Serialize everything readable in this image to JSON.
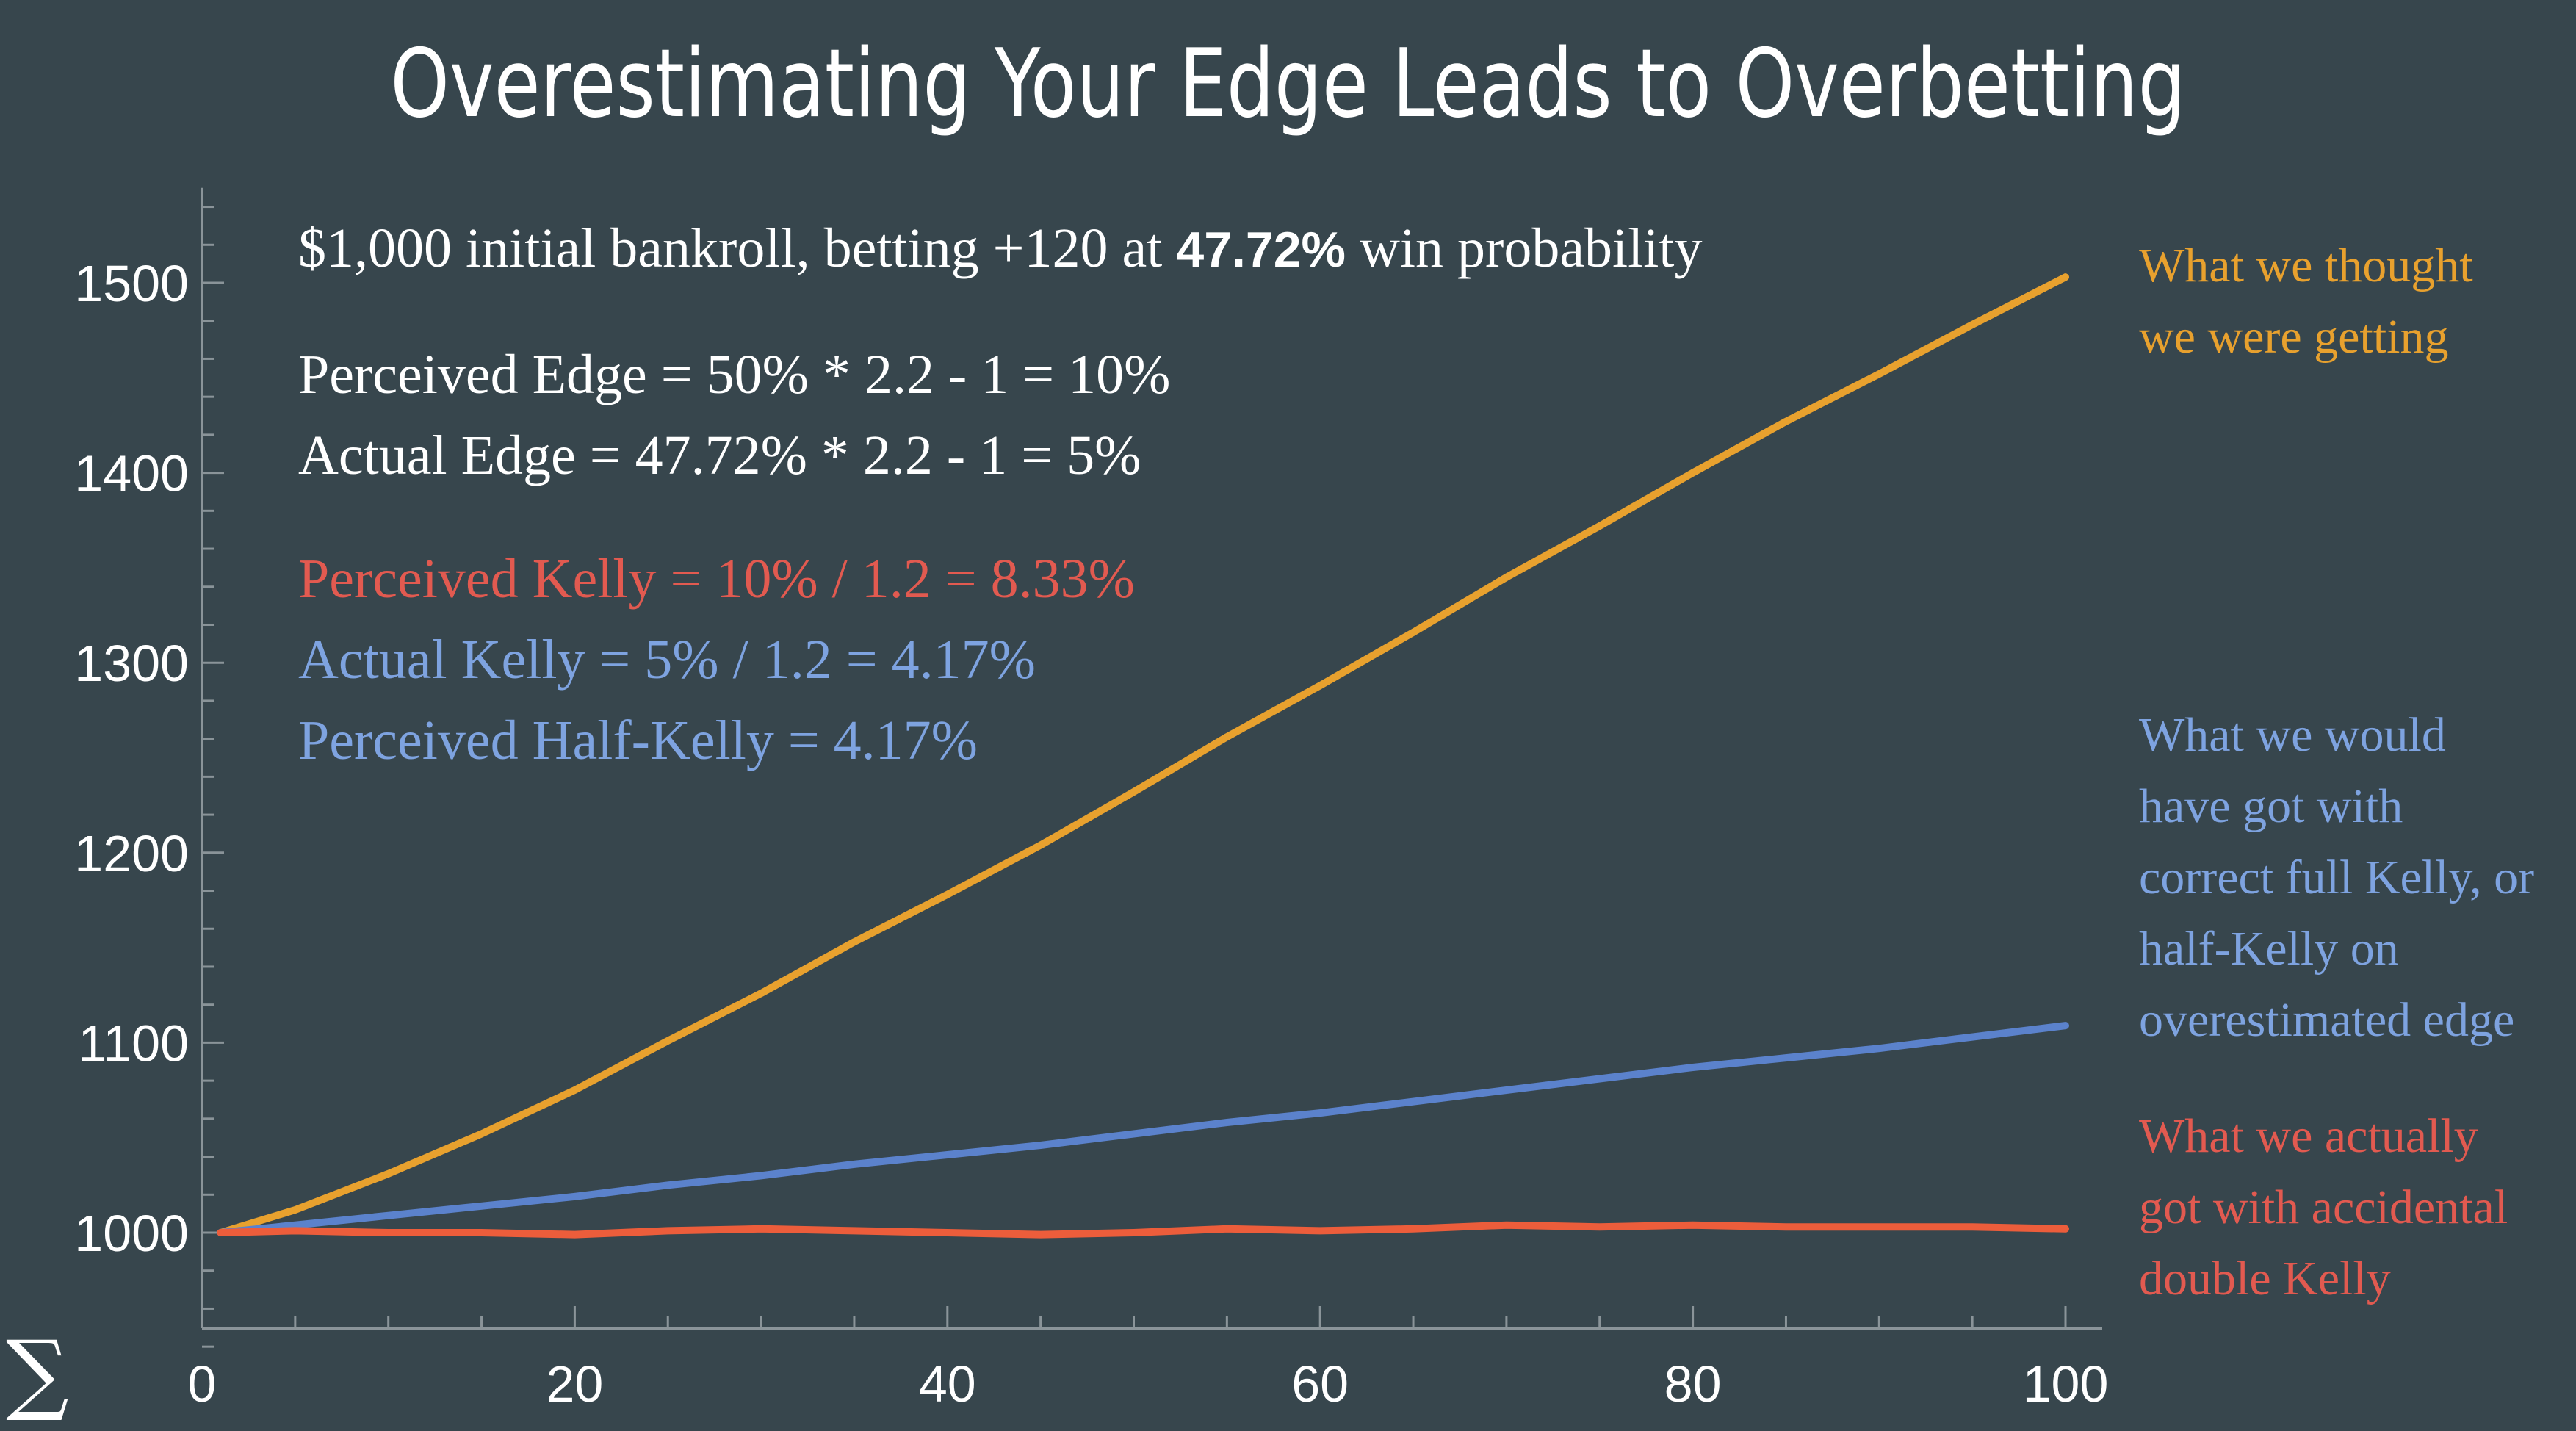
{
  "title": "Overestimating Your Edge Leads to Overbetting",
  "chart_data": {
    "type": "line",
    "xlim": [
      0,
      100
    ],
    "ylim": [
      940,
      1550
    ],
    "x_ticks": [
      0,
      20,
      40,
      60,
      80,
      100
    ],
    "y_ticks": [
      1000,
      1100,
      1200,
      1300,
      1400,
      1500
    ],
    "x_tick_labels": [
      "0",
      "20",
      "40",
      "60",
      "80",
      "100"
    ],
    "y_tick_labels": [
      "1000",
      "1100",
      "1200",
      "1300",
      "1400",
      "1500"
    ],
    "x": [
      1,
      5,
      10,
      15,
      20,
      25,
      30,
      35,
      40,
      45,
      50,
      55,
      60,
      65,
      70,
      75,
      80,
      85,
      90,
      95,
      100
    ],
    "series": [
      {
        "color": "#e8a12e",
        "values": [
          1000,
          1012,
          1031,
          1052,
          1075,
          1101,
          1126,
          1153,
          1178,
          1204,
          1232,
          1261,
          1288,
          1316,
          1345,
          1372,
          1400,
          1427,
          1452,
          1478,
          1503
        ]
      },
      {
        "color": "#5b82cc",
        "values": [
          1000,
          1004,
          1009,
          1014,
          1019,
          1025,
          1030,
          1036,
          1041,
          1046,
          1052,
          1058,
          1063,
          1069,
          1075,
          1081,
          1087,
          1092,
          1097,
          1103,
          1109
        ]
      },
      {
        "color": "#ec5d3b",
        "values": [
          1000,
          1001,
          1000,
          1000,
          999,
          1001,
          1002,
          1001,
          1000,
          999,
          1000,
          1002,
          1001,
          1002,
          1004,
          1003,
          1004,
          1003,
          1003,
          1003,
          1002
        ]
      }
    ],
    "grid": false
  },
  "annotations": {
    "bankroll_prefix": "$1,000 initial bankroll, betting +120 at ",
    "bankroll_prob": "47.72%",
    "bankroll_suffix": " win probability",
    "perceived_edge": "Perceived Edge = 50% * 2.2 - 1 = 10%",
    "actual_edge": "Actual Edge = 47.72% * 2.2 - 1 = 5%",
    "perceived_kelly": "Perceived Kelly = 10% / 1.2 = 8.33%",
    "actual_kelly": "Actual Kelly = 5% / 1.2 = 4.17%",
    "perceived_half_kelly": "Perceived Half-Kelly = 4.17%"
  },
  "side_labels": {
    "orange": [
      "What we thought",
      "we were getting"
    ],
    "blue": [
      "What we would",
      "have got with",
      "correct full Kelly, or",
      "half-Kelly on",
      "overestimated edge"
    ],
    "red": [
      "What we actually",
      "got with accidental",
      "double Kelly"
    ]
  },
  "colors": {
    "background": "#37464d",
    "axis": "#8a9499",
    "orange_line": "#e8a12e",
    "blue_line": "#5b82cc",
    "red_line": "#ec5d3b",
    "orange_text": "#e8a12e",
    "blue_text": "#7ea3e0",
    "red_text": "#e25a50"
  },
  "logo": "∑"
}
